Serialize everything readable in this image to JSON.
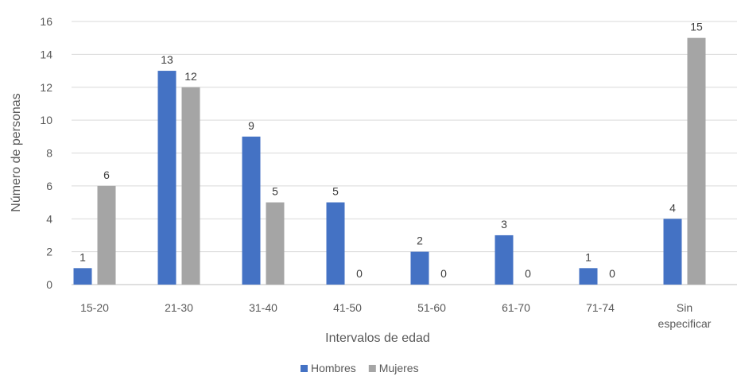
{
  "chart_data": {
    "type": "bar",
    "title": "",
    "xlabel": "Intervalos de edad",
    "ylabel": "Número de personas",
    "categories": [
      [
        "15-20"
      ],
      [
        "21-30"
      ],
      [
        "31-40"
      ],
      [
        "41-50"
      ],
      [
        "51-60"
      ],
      [
        "61-70"
      ],
      [
        "71-74"
      ],
      [
        "Sin",
        "especificar"
      ]
    ],
    "series": [
      {
        "name": "Hombres",
        "color": "#4472C4",
        "values": [
          1,
          13,
          9,
          5,
          2,
          3,
          1,
          4
        ]
      },
      {
        "name": "Mujeres",
        "color": "#A5A5A5",
        "values": [
          6,
          12,
          5,
          0,
          0,
          0,
          0,
          15
        ]
      }
    ],
    "ylim": [
      0,
      16
    ],
    "yticks": [
      0,
      2,
      4,
      6,
      8,
      10,
      12,
      14,
      16
    ],
    "grid": true,
    "legend_position": "bottom"
  }
}
